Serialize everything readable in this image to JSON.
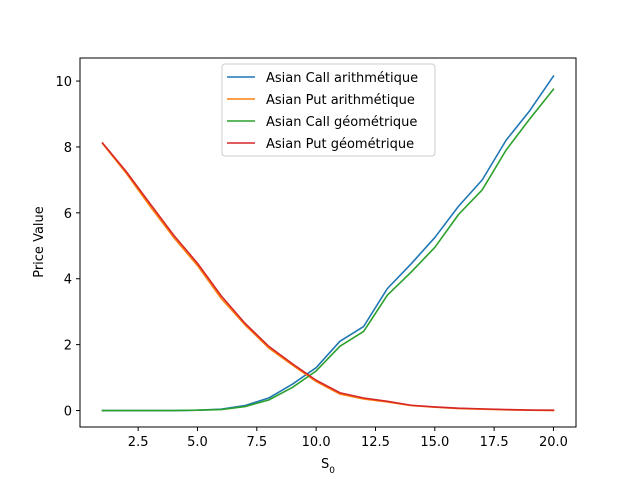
{
  "chart_data": {
    "type": "line",
    "title": "",
    "xlabel": "S",
    "xlabel_subscript": "0",
    "ylabel": "Price Value",
    "xlim": [
      0.05,
      20.95
    ],
    "ylim": [
      -0.5,
      10.7
    ],
    "xticks": [
      2.5,
      5.0,
      7.5,
      10.0,
      12.5,
      15.0,
      17.5,
      20.0
    ],
    "xtick_labels": [
      "2.5",
      "5.0",
      "7.5",
      "10.0",
      "12.5",
      "15.0",
      "17.5",
      "20.0"
    ],
    "yticks": [
      0,
      2,
      4,
      6,
      8,
      10
    ],
    "ytick_labels": [
      "0",
      "2",
      "4",
      "6",
      "8",
      "10"
    ],
    "grid": false,
    "legend_position": "top-center",
    "x": [
      1,
      2,
      3,
      4,
      5,
      6,
      7,
      8,
      9,
      10,
      11,
      12,
      13,
      14,
      15,
      16,
      17,
      18,
      19,
      20
    ],
    "series": [
      {
        "name": "Asian Call arithmétique",
        "color": "#1f77b4",
        "values": [
          0.0,
          0.0,
          0.0,
          0.0,
          0.01,
          0.04,
          0.15,
          0.38,
          0.8,
          1.3,
          2.1,
          2.55,
          3.7,
          4.45,
          5.25,
          6.2,
          7.0,
          8.2,
          9.1,
          10.15
        ]
      },
      {
        "name": "Asian Put arithmétique",
        "color": "#ff7f0e",
        "values": [
          8.1,
          7.2,
          6.2,
          5.25,
          4.4,
          3.4,
          2.6,
          1.9,
          1.38,
          0.88,
          0.5,
          0.35,
          0.26,
          0.15,
          0.1,
          0.06,
          0.04,
          0.02,
          0.01,
          0.0
        ]
      },
      {
        "name": "Asian Call géométrique",
        "color": "#2ca02c",
        "values": [
          0.0,
          0.0,
          0.0,
          0.0,
          0.01,
          0.03,
          0.12,
          0.32,
          0.7,
          1.2,
          1.95,
          2.4,
          3.5,
          4.2,
          4.95,
          5.95,
          6.7,
          7.9,
          8.85,
          9.75
        ]
      },
      {
        "name": "Asian Put géométrique",
        "color": "#d62728",
        "values": [
          8.12,
          7.25,
          6.28,
          5.32,
          4.47,
          3.48,
          2.65,
          1.95,
          1.42,
          0.92,
          0.54,
          0.38,
          0.28,
          0.16,
          0.11,
          0.07,
          0.05,
          0.03,
          0.015,
          0.01
        ]
      }
    ]
  }
}
